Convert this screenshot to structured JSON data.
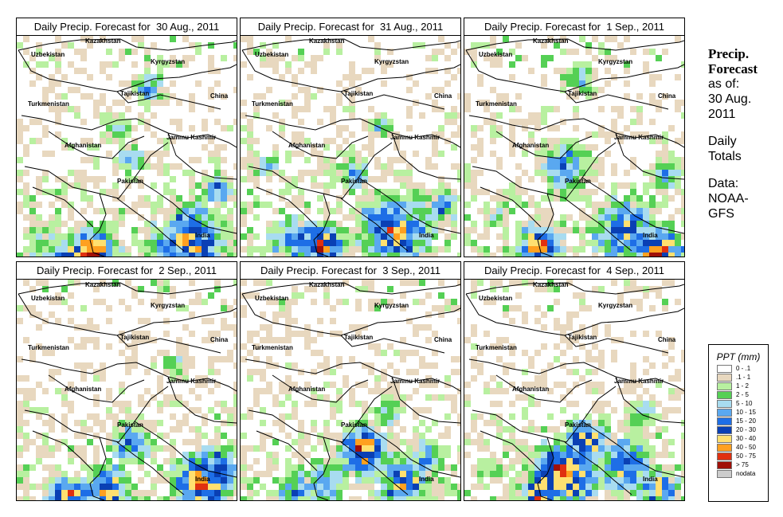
{
  "panels": [
    {
      "title": "Daily Precip. Forecast for  30 Aug., 2011"
    },
    {
      "title": "Daily Precip. Forecast for  31 Aug., 2011"
    },
    {
      "title": "Daily Precip. Forecast for  1 Sep., 2011"
    },
    {
      "title": "Daily Precip. Forecast for  2 Sep., 2011"
    },
    {
      "title": "Daily Precip. Forecast for  3 Sep., 2011"
    },
    {
      "title": "Daily Precip. Forecast for  4 Sep., 2011"
    }
  ],
  "map_labels": {
    "kazakhstan": "Kazakhstan",
    "uzbekistan": "Uzbekistan",
    "kyrgyzstan": "Kyrgyzstan",
    "tajikistan": "Tajikistan",
    "china": "China",
    "turkmenistan": "Turkmenistan",
    "afghanistan": "Afghanistan",
    "jammu_kashmir": "Jammu Kashmir",
    "pakistan": "Pakistan",
    "india": "India"
  },
  "sidebar": {
    "line1": "Precip.",
    "line2": "Forecast",
    "line3": "as of:",
    "line4": "30 Aug.",
    "line5": "2011",
    "line6": "Daily",
    "line7": "Totals",
    "line8": "Data:",
    "line9": "NOAA-",
    "line10": "GFS"
  },
  "legend": {
    "title": "PPT (mm)",
    "items": [
      {
        "label": "0 - .1",
        "color": "#ffffff"
      },
      {
        "label": ".1 - 1",
        "color": "#e8d8bf"
      },
      {
        "label": "1 - 2",
        "color": "#b8f0a0"
      },
      {
        "label": "2 - 5",
        "color": "#55d055"
      },
      {
        "label": "5 - 10",
        "color": "#a8dcf0"
      },
      {
        "label": "10 - 15",
        "color": "#5aa8f0"
      },
      {
        "label": "15 - 20",
        "color": "#1e6ee6"
      },
      {
        "label": "20 - 30",
        "color": "#0a40b4"
      },
      {
        "label": "30 - 40",
        "color": "#ffe070"
      },
      {
        "label": "40 - 50",
        "color": "#ffa020"
      },
      {
        "label": "50 - 75",
        "color": "#e03010"
      },
      {
        "label": "> 75",
        "color": "#a01008"
      },
      {
        "label": "nodata",
        "color": "#cccccc"
      }
    ]
  }
}
